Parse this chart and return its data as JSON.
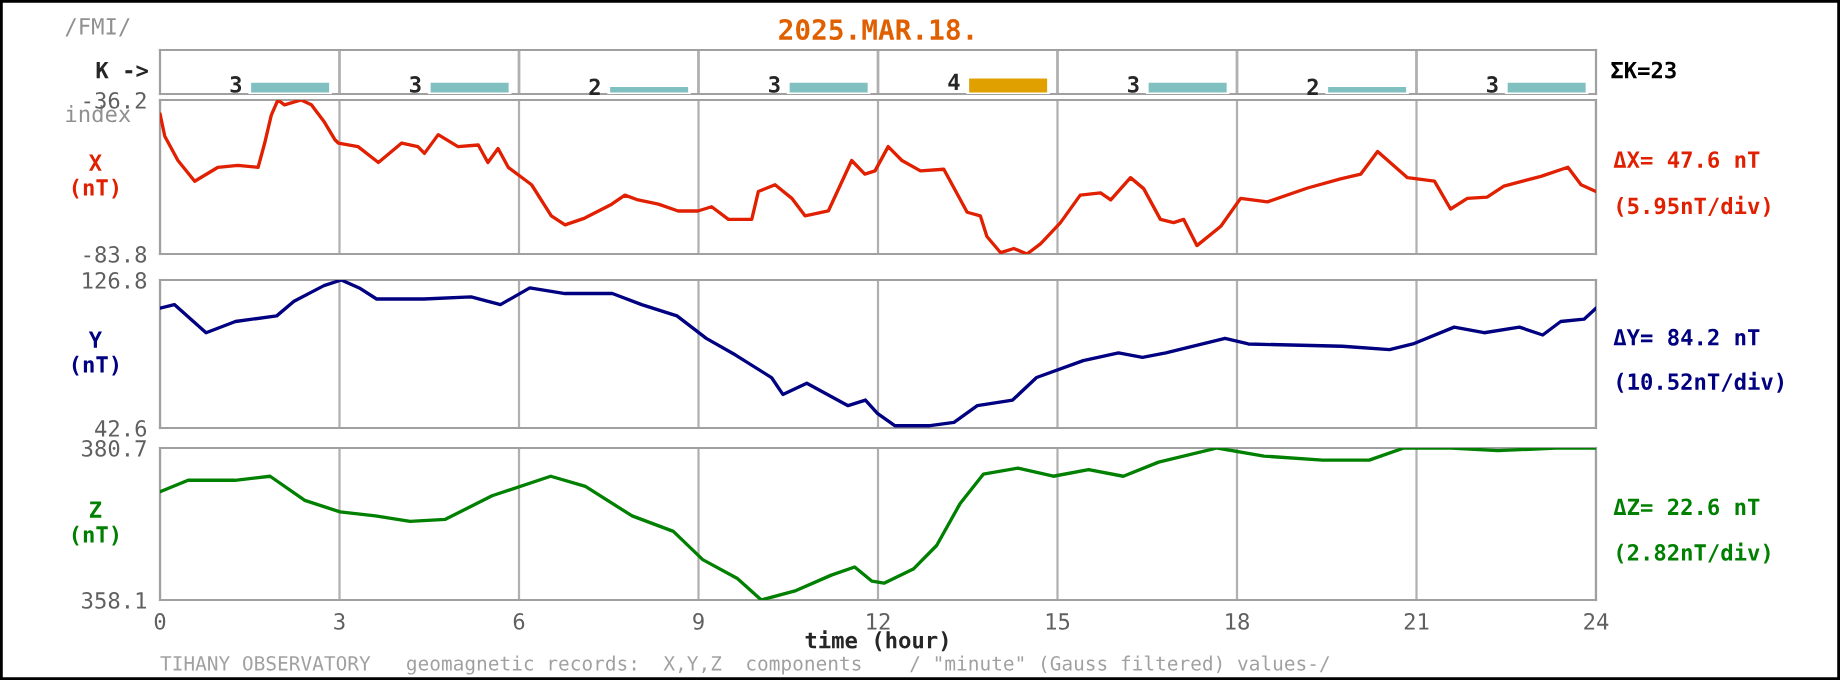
{
  "chart_data": [
    {
      "type": "bar",
      "title": "2025.MAR.18.",
      "ylabel": "K ->",
      "categories": [
        null,
        null,
        null,
        null,
        null,
        null,
        null,
        null
      ],
      "values": [
        3,
        3,
        2,
        3,
        4,
        3,
        2,
        3
      ],
      "colors": [
        "#80c0c0",
        "#80c0c0",
        "#80c0c0",
        "#80c0c0",
        "#e0a000",
        "#80c0c0",
        "#80c0c0",
        "#80c0c0"
      ],
      "data_labels": true,
      "tick_labels": false,
      "annotations": [
        "/FMI/",
        "index",
        "ΣK=23"
      ]
    },
    {
      "type": "line",
      "ylabel": "X\n(nT)",
      "xlim": [
        0,
        24
      ],
      "xticks": [
        0,
        3,
        6,
        9,
        12,
        15,
        18,
        21,
        24
      ],
      "ylim": [
        -83.8,
        -36.2
      ],
      "yticks": [
        -83.8,
        -36.2
      ],
      "grid": true,
      "tick_labels": "y",
      "annotations": [
        "ΔX= 47.6 nT",
        "(5.95nT/div)"
      ],
      "series": [
        {
          "color": "#e02000",
          "x": [
            0,
            0.08,
            0.3,
            0.58,
            0.97,
            1.3,
            1.64,
            1.75,
            1.86,
            1.97,
            2.08,
            2.36,
            2.53,
            2.75,
            2.92,
            2.98,
            3.31,
            3.65,
            4.04,
            4.31,
            4.42,
            4.65,
            4.98,
            5.32,
            5.48,
            5.65,
            5.82,
            6.21,
            6.54,
            6.77,
            7.1,
            7.55,
            7.77,
            7.99,
            8.33,
            8.66,
            8.99,
            9.22,
            9.5,
            9.89,
            10.0,
            10.28,
            10.56,
            10.78,
            11.17,
            11.56,
            11.78,
            11.95,
            12.17,
            12.4,
            12.71,
            13.1,
            13.49,
            13.71,
            13.82,
            14.05,
            14.27,
            14.49,
            14.72,
            15.05,
            15.38,
            15.72,
            15.89,
            16.22,
            16.44,
            16.72,
            16.94,
            17.11,
            17.33,
            17.73,
            18.06,
            18.51,
            19.18,
            19.73,
            20.07,
            20.35,
            20.85,
            21.3,
            21.57,
            21.85,
            22.18,
            22.46,
            23.08,
            23.53,
            23.75,
            24
          ],
          "values": [
            -40.5,
            -47.4,
            -54.9,
            -61.3,
            -57.0,
            -56.4,
            -57.0,
            -49.5,
            -40.9,
            -36.2,
            -37.7,
            -36.2,
            -37.7,
            -43.1,
            -48.4,
            -49.5,
            -50.6,
            -55.5,
            -49.5,
            -50.6,
            -52.7,
            -46.9,
            -50.6,
            -50.1,
            -55.5,
            -51.2,
            -57.0,
            -62.4,
            -72.0,
            -74.8,
            -72.7,
            -68.4,
            -65.6,
            -67.1,
            -68.4,
            -70.5,
            -70.5,
            -69.2,
            -73.1,
            -73.1,
            -64.5,
            -62.4,
            -66.6,
            -72.0,
            -70.5,
            -54.9,
            -59.1,
            -58.1,
            -50.6,
            -54.9,
            -58.1,
            -57.6,
            -70.9,
            -72.0,
            -78.4,
            -83.4,
            -82.1,
            -83.8,
            -80.6,
            -74.1,
            -65.6,
            -64.9,
            -67.1,
            -60.2,
            -63.6,
            -73.1,
            -74.1,
            -73.1,
            -81.2,
            -75.2,
            -66.6,
            -67.7,
            -63.4,
            -60.6,
            -59.1,
            -52.1,
            -60.2,
            -61.3,
            -69.9,
            -66.6,
            -66.2,
            -62.8,
            -59.8,
            -57.0,
            -62.4,
            -64.5
          ]
        }
      ]
    },
    {
      "type": "line",
      "ylabel": "Y\n(nT)",
      "xlim": [
        0,
        24
      ],
      "xticks": [
        0,
        3,
        6,
        9,
        12,
        15,
        18,
        21,
        24
      ],
      "ylim": [
        42.6,
        126.8
      ],
      "yticks": [
        42.6,
        126.8
      ],
      "grid": true,
      "tick_labels": "y",
      "annotations": [
        "ΔY= 84.2 nT",
        "(10.52nT/div)"
      ],
      "series": [
        {
          "color": "#000080",
          "x": [
            0,
            0.24,
            0.77,
            1.26,
            1.95,
            2.24,
            2.74,
            3.03,
            3.33,
            3.62,
            4.41,
            5.2,
            5.69,
            6.18,
            6.77,
            7.56,
            8.05,
            8.64,
            9.13,
            9.62,
            10.22,
            10.41,
            10.81,
            11.5,
            11.79,
            11.99,
            12.28,
            12.87,
            13.27,
            13.66,
            14.25,
            14.65,
            15.43,
            16.02,
            16.42,
            16.81,
            17.8,
            18.19,
            19.76,
            20.55,
            20.94,
            21.63,
            22.13,
            22.72,
            23.11,
            23.41,
            23.8,
            24
          ],
          "values": [
            110.8,
            112.8,
            96.8,
            103.2,
            106.4,
            114.7,
            123.6,
            126.8,
            122.3,
            116.0,
            116.0,
            117.2,
            112.8,
            122.3,
            119.1,
            119.1,
            112.8,
            106.4,
            93.6,
            84.1,
            71.3,
            61.7,
            68.1,
            55.3,
            58.5,
            50.9,
            43.9,
            43.9,
            45.8,
            55.3,
            58.5,
            71.3,
            80.9,
            85.3,
            82.8,
            85.3,
            93.6,
            90.4,
            89.1,
            87.2,
            90.4,
            100.0,
            96.8,
            100.0,
            95.5,
            103.2,
            104.5,
            110.8
          ]
        }
      ]
    },
    {
      "type": "line",
      "ylabel": "Z\n(nT)",
      "xlabel": "time (hour)",
      "xlim": [
        0,
        24
      ],
      "xticks": [
        0,
        3,
        6,
        9,
        12,
        15,
        18,
        21,
        24
      ],
      "ylim": [
        358.1,
        380.7
      ],
      "yticks": [
        358.1,
        380.7
      ],
      "grid": true,
      "annotations": [
        "ΔZ= 22.6 nT",
        "(2.82nT/div)",
        "TIHANY OBSERVATORY   geomagnetic records:  X,Y,Z  components    / \"minute\" (Gauss filtered) values-/"
      ],
      "series": [
        {
          "color": "#008000",
          "x": [
            0,
            0.47,
            1.25,
            1.84,
            2.42,
            3.01,
            3.6,
            4.18,
            4.77,
            5.55,
            6.53,
            7.11,
            7.89,
            8.58,
            9.07,
            9.65,
            10.05,
            10.63,
            11.22,
            11.61,
            11.9,
            12.1,
            12.59,
            12.98,
            13.37,
            13.76,
            14.34,
            14.93,
            15.52,
            16.1,
            16.69,
            17.67,
            18.45,
            19.43,
            20.21,
            20.79,
            21.58,
            22.36,
            23.33,
            24
          ],
          "values": [
            374.2,
            375.9,
            375.9,
            376.5,
            372.9,
            371.2,
            370.6,
            369.8,
            370.1,
            373.6,
            376.5,
            375.0,
            370.6,
            368.3,
            364.1,
            361.3,
            358.1,
            359.5,
            361.8,
            363.0,
            360.9,
            360.6,
            362.7,
            366.2,
            372.4,
            376.8,
            377.7,
            376.5,
            377.5,
            376.5,
            378.6,
            380.7,
            379.5,
            378.9,
            378.9,
            380.7,
            380.7,
            380.3,
            380.7,
            380.7
          ]
        }
      ]
    }
  ]
}
